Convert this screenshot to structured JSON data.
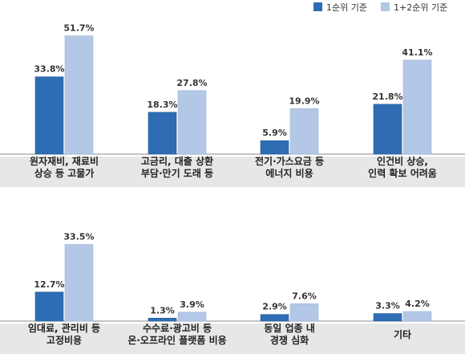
{
  "chart_data": {
    "type": "bar",
    "legend": {
      "placement": "top-right",
      "series_labels": [
        "1순위 기준",
        "1+2순위 기준"
      ]
    },
    "series": [
      {
        "name": "1순위 기준",
        "color": "#2e6db4"
      },
      {
        "name": "1+2순위 기준",
        "color": "#b3c7e6"
      }
    ],
    "panels": [
      {
        "categories": [
          [
            "원자재비, 재료비",
            "상승 등 고물가"
          ],
          [
            "고금리, 대출 상환",
            "부담·만기 도래 등"
          ],
          [
            "전기·가스요금 등",
            "에너지 비용"
          ],
          [
            "인건비 상승,",
            "인력 확보 어려움"
          ]
        ],
        "values": [
          [
            33.8,
            51.7
          ],
          [
            18.3,
            27.8
          ],
          [
            5.9,
            19.9
          ],
          [
            21.8,
            41.1
          ]
        ],
        "value_labels": [
          [
            "33.8%",
            "51.7%"
          ],
          [
            "18.3%",
            "27.8%"
          ],
          [
            "5.9%",
            "19.9%"
          ],
          [
            "21.8%",
            "41.1%"
          ]
        ]
      },
      {
        "categories": [
          [
            "임대료, 관리비 등",
            "고정비용"
          ],
          [
            "수수료·광고비 등",
            "온·오프라인 플랫폼 비용"
          ],
          [
            "동일 업종 내",
            "경쟁 심화"
          ],
          [
            "기타"
          ]
        ],
        "values": [
          [
            12.7,
            33.5
          ],
          [
            1.3,
            3.9
          ],
          [
            2.9,
            7.6
          ],
          [
            3.3,
            4.2
          ]
        ],
        "value_labels": [
          [
            "12.7%",
            "33.5%"
          ],
          [
            "1.3%",
            "3.9%"
          ],
          [
            "2.9%",
            "7.6%"
          ],
          [
            "3.3%",
            "4.2%"
          ]
        ]
      }
    ],
    "ylim": [
      0,
      55
    ],
    "grid": false
  }
}
